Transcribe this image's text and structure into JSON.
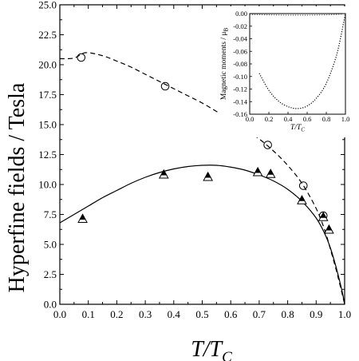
{
  "chart_data": [
    {
      "type": "line",
      "xlabel_main": "T/T",
      "xlabel_sub": "C",
      "ylabel": "Hyperfine fields / Tesla",
      "xlim": [
        0.0,
        1.0
      ],
      "ylim": [
        0.0,
        25.0
      ],
      "xticks": [
        0.0,
        0.1,
        0.2,
        0.3,
        0.4,
        0.5,
        0.6,
        0.7,
        0.8,
        0.9,
        1.0
      ],
      "yticks": [
        0.0,
        2.5,
        5.0,
        7.5,
        10.0,
        12.5,
        15.0,
        17.5,
        20.0,
        22.5,
        25.0
      ],
      "xtick_labels": [
        "0.0",
        "0.1",
        "0.2",
        "0.3",
        "0.4",
        "0.5",
        "0.6",
        "0.7",
        "0.8",
        "0.9",
        "1.0"
      ],
      "ytick_labels": [
        "0.0",
        "2.5",
        "5.0",
        "7.5",
        "10.0",
        "12.5",
        "15.0",
        "17.5",
        "20.0",
        "22.5",
        "25.0"
      ],
      "series": [
        {
          "style": "dashed",
          "color": "#000000",
          "x": [
            0.0,
            0.05,
            0.09,
            0.15,
            0.2,
            0.25,
            0.3,
            0.35,
            0.4,
            0.45,
            0.5,
            0.55,
            0.6,
            0.65,
            0.7,
            0.75,
            0.8,
            0.85,
            0.9,
            0.93,
            0.95,
            0.97,
            0.99,
            1.0
          ],
          "y": [
            20.5,
            20.55,
            21.0,
            20.75,
            20.3,
            19.8,
            19.2,
            18.6,
            18.0,
            17.4,
            16.8,
            16.1,
            15.4,
            14.6,
            13.8,
            12.8,
            11.6,
            10.1,
            8.0,
            6.2,
            4.6,
            2.9,
            1.0,
            0.0
          ]
        },
        {
          "style": "solid",
          "color": "#000000",
          "x": [
            0.0,
            0.05,
            0.1,
            0.15,
            0.2,
            0.25,
            0.3,
            0.35,
            0.4,
            0.45,
            0.5,
            0.55,
            0.6,
            0.65,
            0.7,
            0.75,
            0.8,
            0.85,
            0.9,
            0.93,
            0.95,
            0.97,
            0.99,
            1.0
          ],
          "y": [
            6.8,
            7.5,
            8.2,
            8.9,
            9.5,
            10.1,
            10.6,
            11.0,
            11.3,
            11.5,
            11.6,
            11.6,
            11.45,
            11.2,
            10.8,
            10.3,
            9.6,
            8.6,
            7.2,
            5.9,
            4.7,
            3.1,
            1.2,
            0.0
          ]
        },
        {
          "marker": "open-circle",
          "x": [
            0.075,
            0.37,
            0.73,
            0.855,
            0.925
          ],
          "y": [
            20.6,
            18.2,
            13.3,
            9.9,
            7.4
          ]
        },
        {
          "marker": "half-filled-triangle",
          "x": [
            0.08,
            0.365,
            0.52,
            0.695,
            0.74,
            0.85,
            0.925,
            0.945
          ],
          "y": [
            7.1,
            10.8,
            10.6,
            11.0,
            10.85,
            8.65,
            7.25,
            6.2
          ]
        }
      ],
      "inset": {
        "type": "line",
        "xlabel_main": "T/T",
        "xlabel_sub": "C",
        "ylabel_main": "Magnetic moments / μ",
        "ylabel_sub": "B",
        "xlim": [
          0.0,
          1.0
        ],
        "ylim": [
          -0.16,
          0.0
        ],
        "xticks": [
          0.0,
          0.2,
          0.4,
          0.6,
          0.8,
          1.0
        ],
        "yticks": [
          0.0,
          -0.02,
          -0.04,
          -0.06,
          -0.08,
          -0.1,
          -0.12,
          -0.14,
          -0.16
        ],
        "xtick_labels": [
          "0.0",
          "0.2",
          "0.4",
          "0.6",
          "0.8",
          "1.0"
        ],
        "ytick_labels": [
          "0.00",
          "-0.02",
          "-0.04",
          "-0.06",
          "-0.08",
          "-0.10",
          "-0.12",
          "-0.14",
          "-0.16"
        ],
        "series": [
          {
            "style": "dotted",
            "color": "#000000",
            "x": [
              0.1,
              0.2,
              0.3,
              0.4,
              0.5,
              0.6,
              0.7,
              0.8,
              0.9,
              0.95,
              0.98,
              1.0
            ],
            "y": [
              -0.095,
              -0.122,
              -0.139,
              -0.148,
              -0.151,
              -0.147,
              -0.134,
              -0.111,
              -0.07,
              -0.038,
              -0.015,
              0.0
            ]
          },
          {
            "style": "dotted",
            "color": "#666666",
            "x": [
              0.0,
              0.2,
              0.4,
              0.6,
              0.8,
              0.9,
              0.95,
              0.98,
              1.0
            ],
            "y": [
              -0.0015,
              -0.002,
              -0.0025,
              -0.0025,
              -0.002,
              -0.0015,
              -0.001,
              -0.0003,
              0.0
            ]
          }
        ]
      }
    }
  ]
}
